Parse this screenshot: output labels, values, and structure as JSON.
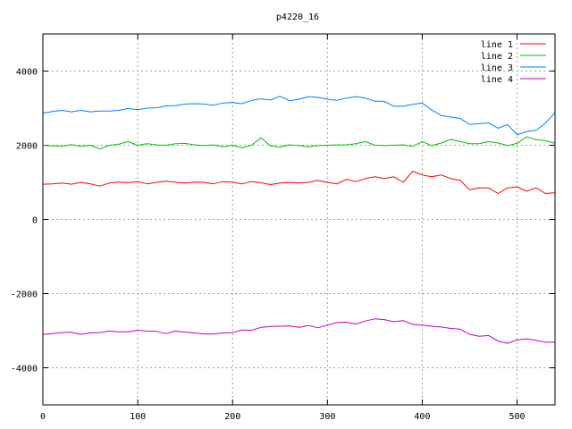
{
  "chart_data": {
    "type": "line",
    "title": "p4220_16",
    "xlabel": "",
    "ylabel": "",
    "xlim": [
      0,
      540
    ],
    "ylim": [
      -5000,
      5000
    ],
    "grid": true,
    "legend_position": "top-right",
    "x_ticks": [
      0,
      100,
      200,
      300,
      400,
      500
    ],
    "y_ticks": [
      -4000,
      -2000,
      0,
      2000,
      4000
    ],
    "x_tick_labels": [
      "0",
      "100",
      "200",
      "300",
      "400",
      "500"
    ],
    "y_tick_labels": [
      "-4000",
      "-2000",
      "0",
      "2000",
      "4000"
    ],
    "x": [
      0,
      10,
      20,
      30,
      40,
      50,
      60,
      70,
      80,
      90,
      100,
      110,
      120,
      130,
      140,
      150,
      160,
      170,
      180,
      190,
      200,
      210,
      220,
      230,
      240,
      250,
      260,
      270,
      280,
      290,
      300,
      310,
      320,
      330,
      340,
      350,
      360,
      370,
      380,
      390,
      400,
      410,
      420,
      430,
      440,
      450,
      460,
      470,
      480,
      490,
      500,
      510,
      520,
      530,
      540
    ],
    "series": [
      {
        "name": "line 1",
        "color": "#ff0000",
        "values": [
          950,
          960,
          980,
          950,
          1000,
          960,
          900,
          980,
          1010,
          990,
          1020,
          960,
          1000,
          1030,
          1000,
          980,
          1010,
          1000,
          960,
          1020,
          1000,
          960,
          1020,
          990,
          940,
          980,
          1000,
          980,
          1000,
          1050,
          1000,
          960,
          1080,
          1020,
          1100,
          1150,
          1100,
          1150,
          1000,
          1300,
          1200,
          1150,
          1200,
          1100,
          1050,
          800,
          850,
          850,
          700,
          850,
          880,
          760,
          850,
          700,
          720
        ]
      },
      {
        "name": "line 2",
        "color": "#00c000",
        "values": [
          2000,
          1980,
          1970,
          2020,
          1970,
          2000,
          1900,
          2000,
          2030,
          2100,
          2000,
          2040,
          2010,
          2000,
          2040,
          2050,
          2010,
          1990,
          2010,
          1960,
          2000,
          1930,
          2000,
          2200,
          1980,
          1950,
          2010,
          1990,
          1960,
          1990,
          2000,
          2010,
          2010,
          2040,
          2100,
          2000,
          1990,
          2000,
          2010,
          1970,
          2100,
          1990,
          2060,
          2160,
          2100,
          2040,
          2040,
          2100,
          2060,
          1990,
          2050,
          2230,
          2150,
          2120,
          2050
        ]
      },
      {
        "name": "line 3",
        "color": "#0080ff",
        "values": [
          2860,
          2910,
          2940,
          2900,
          2940,
          2900,
          2920,
          2920,
          2940,
          2990,
          2960,
          3000,
          3010,
          3060,
          3070,
          3110,
          3120,
          3110,
          3080,
          3140,
          3150,
          3120,
          3210,
          3250,
          3220,
          3320,
          3200,
          3240,
          3310,
          3290,
          3240,
          3210,
          3270,
          3310,
          3270,
          3190,
          3180,
          3050,
          3050,
          3100,
          3140,
          2950,
          2800,
          2760,
          2720,
          2560,
          2580,
          2600,
          2460,
          2560,
          2280,
          2370,
          2400,
          2600,
          2880
        ]
      },
      {
        "name": "line 4",
        "color": "#c000c0",
        "values": [
          -3100,
          -3080,
          -3050,
          -3040,
          -3100,
          -3060,
          -3050,
          -3010,
          -3030,
          -3030,
          -2990,
          -3010,
          -3020,
          -3080,
          -3010,
          -3040,
          -3060,
          -3090,
          -3090,
          -3060,
          -3050,
          -2980,
          -2990,
          -2910,
          -2890,
          -2880,
          -2870,
          -2910,
          -2860,
          -2920,
          -2850,
          -2780,
          -2770,
          -2820,
          -2740,
          -2680,
          -2700,
          -2760,
          -2730,
          -2830,
          -2850,
          -2880,
          -2900,
          -2940,
          -2960,
          -3100,
          -3150,
          -3130,
          -3280,
          -3340,
          -3250,
          -3220,
          -3260,
          -3310,
          -3310
        ]
      }
    ]
  }
}
